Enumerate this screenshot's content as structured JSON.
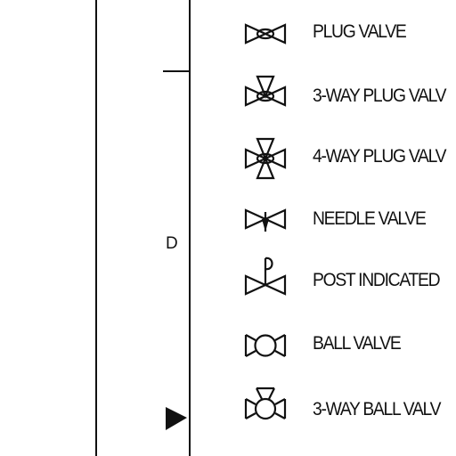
{
  "zone_marker": "D",
  "legend": {
    "items": [
      {
        "label": "PLUG VALVE",
        "icon": "plug-valve-icon"
      },
      {
        "label": "3-WAY PLUG VALV",
        "icon": "three-way-plug-valve-icon"
      },
      {
        "label": "4-WAY PLUG VALV",
        "icon": "four-way-plug-valve-icon"
      },
      {
        "label": "NEEDLE VALVE",
        "icon": "needle-valve-icon"
      },
      {
        "label": "POST INDICATED",
        "icon": "post-indicated-valve-icon"
      },
      {
        "label": "BALL VALVE",
        "icon": "ball-valve-icon"
      },
      {
        "label": "3-WAY BALL VALV",
        "icon": "three-way-ball-valve-icon"
      }
    ]
  },
  "colors": {
    "ink": "#111111",
    "paper": "#ffffff"
  }
}
